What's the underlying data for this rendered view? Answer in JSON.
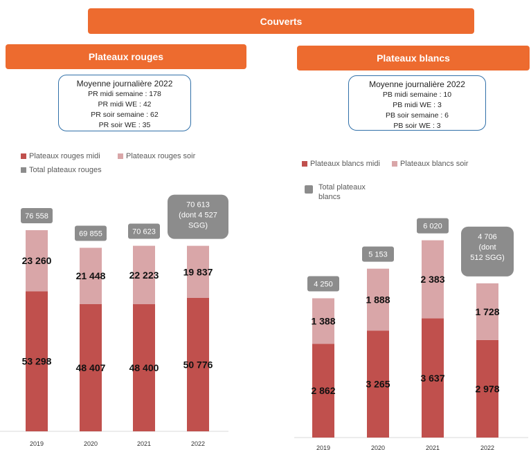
{
  "header": {
    "title": "Couverts"
  },
  "colors": {
    "banner": "#ed6b2f",
    "midi": "#c0504d",
    "soir": "#d9a6a8",
    "total": "#8c8c8c",
    "box_border": "#2f6fa8"
  },
  "left": {
    "title": "Plateaux rouges",
    "avg_box": {
      "title": "Moyenne journalière 2022",
      "lines": [
        "PR midi semaine : 178",
        "PR midi WE : 42",
        "PR soir semaine : 62",
        "PR soir WE : 35"
      ]
    },
    "legend": {
      "midi": "Plateaux rouges midi",
      "soir": "Plateaux rouges soir",
      "total": "Total plateaux rouges"
    }
  },
  "right": {
    "title": "Plateaux blancs",
    "avg_box": {
      "title": "Moyenne journalière 2022",
      "lines": [
        "PB midi semaine : 10",
        "PB midi WE : 3",
        "PB soir semaine : 6",
        "PB soir WE : 3"
      ]
    },
    "legend": {
      "midi": "Plateaux blancs midi",
      "soir": "Plateaux blancs soir",
      "total": "Total plateaux blancs"
    }
  },
  "chart_data": [
    {
      "type": "bar",
      "stacked": true,
      "categories": [
        "2019",
        "2020",
        "2021",
        "2022"
      ],
      "series": [
        {
          "name": "Plateaux rouges midi",
          "values": [
            53298,
            48407,
            48400,
            50776
          ],
          "labels": [
            "53 298",
            "48 407",
            "48 400",
            "50 776"
          ]
        },
        {
          "name": "Plateaux rouges soir",
          "values": [
            23260,
            21448,
            22223,
            19837
          ],
          "labels": [
            "23 260",
            "21 448",
            "22 223",
            "19 837"
          ]
        }
      ],
      "totals": [
        76558,
        69855,
        70623,
        70613
      ],
      "total_labels": [
        "76 558",
        "69 855",
        "70 623",
        "70 613 (dont 4 527 SGG)"
      ],
      "legend_position": "top-left",
      "ylim": [
        0,
        80000
      ]
    },
    {
      "type": "bar",
      "stacked": true,
      "categories": [
        "2019",
        "2020",
        "2021",
        "2022"
      ],
      "series": [
        {
          "name": "Plateaux blancs midi",
          "values": [
            2862,
            3265,
            3637,
            2978
          ],
          "labels": [
            "2 862",
            "3 265",
            "3 637",
            "2 978"
          ]
        },
        {
          "name": "Plateaux blancs soir",
          "values": [
            1388,
            1888,
            2383,
            1728
          ],
          "labels": [
            "1 388",
            "1 888",
            "2 383",
            "1 728"
          ]
        }
      ],
      "totals": [
        4250,
        5153,
        6020,
        4706
      ],
      "total_labels": [
        "4 250",
        "5 153",
        "6 020",
        "4 706 (dont 512 SGG)"
      ],
      "legend_position": "top-left",
      "ylim": [
        0,
        6500
      ]
    }
  ]
}
